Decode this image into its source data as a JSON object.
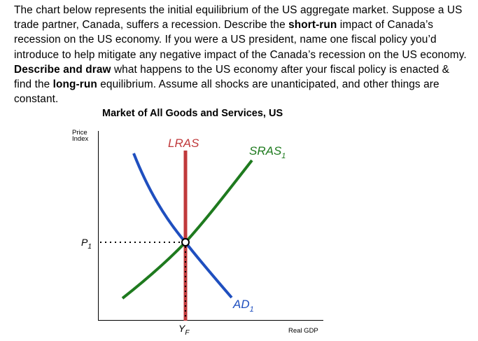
{
  "question": {
    "part1": "The chart below represents the initial equilibrium of the US aggregate market. Suppose a US trade partner, Canada, suffers a recession. Describe the ",
    "bold1": "short-run",
    "part2": " impact of Canada’s recession on the US economy. If you were a US president, name one fiscal policy you’d introduce to help mitigate any negative impact of the Canada’s recession on the US economy. ",
    "bold2": "Describe and draw",
    "part3": " what happens to the US economy after your fiscal policy is enacted & find the ",
    "bold3": "long-run",
    "part4": " equilibrium. Assume all shocks are unanticipated, and other things are constant."
  },
  "chart_data": {
    "type": "diagram",
    "title": "Market of All Goods and Services, US",
    "ylabel_line1": "Price",
    "ylabel_line2": "Index",
    "xlabel": "Real GDP",
    "curves": {
      "lras": {
        "label": "LRAS",
        "color": "#c0393b"
      },
      "sras": {
        "label": "SRAS",
        "sub": "1",
        "color": "#1e7a1e"
      },
      "ad": {
        "label": "AD",
        "sub": "1",
        "color": "#1f4fbf"
      }
    },
    "equilibrium": {
      "price_label": "P",
      "price_sub": "1",
      "output_label": "Y",
      "output_sub": "F"
    }
  }
}
